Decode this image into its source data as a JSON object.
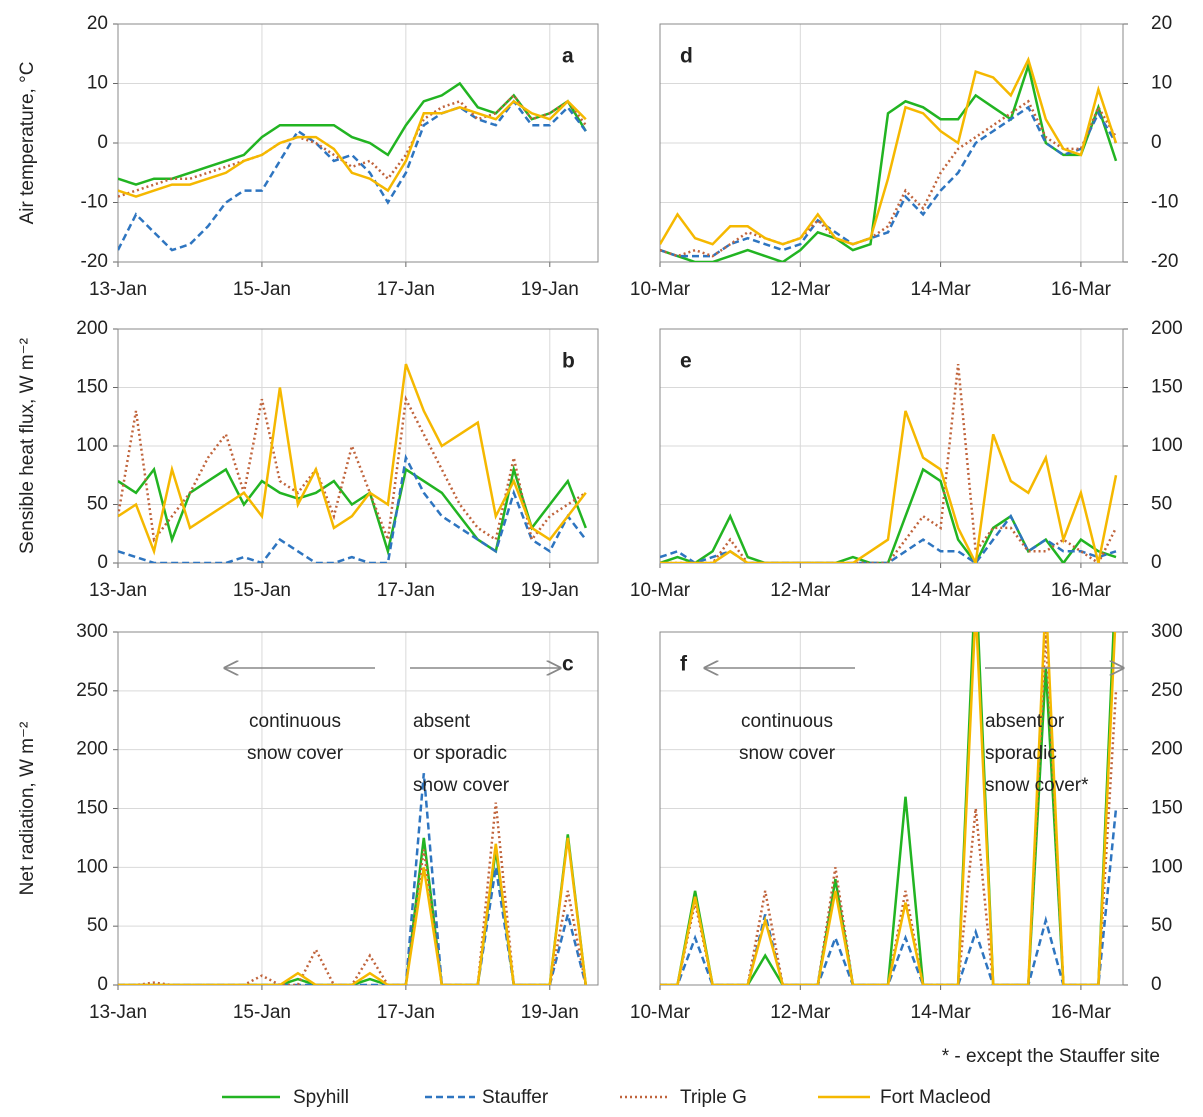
{
  "chart_data": [
    {
      "type": "line",
      "label": "a",
      "ylabel": "Air temperature, °C",
      "x": [
        0,
        0.25,
        0.5,
        0.75,
        1,
        1.25,
        1.5,
        1.75,
        2,
        2.25,
        2.5,
        2.75,
        3,
        3.25,
        3.5,
        3.75,
        4,
        4.25,
        4.5,
        4.75,
        5,
        5.25,
        5.5,
        5.75,
        6,
        6.25,
        6.5
      ],
      "xlim": [
        0,
        6.67
      ],
      "xticks": [
        {
          "value": 0,
          "label": "13-Jan"
        },
        {
          "value": 2,
          "label": "15-Jan"
        },
        {
          "value": 4,
          "label": "17-Jan"
        },
        {
          "value": 6,
          "label": "19-Jan"
        }
      ],
      "ylim": [
        -20,
        20
      ],
      "yticks": [
        -20,
        -10,
        0,
        10,
        20
      ],
      "yaxis_side": "left",
      "grid": true,
      "series": [
        {
          "name": "Spyhill",
          "color": "#22b422",
          "dash": "solid",
          "values": [
            -6,
            -7,
            -6,
            -6,
            -5,
            -4,
            -3,
            -2,
            1,
            3,
            3,
            3,
            3,
            1,
            0,
            -2,
            3,
            7,
            8,
            10,
            6,
            5,
            8,
            4,
            5,
            7,
            2
          ]
        },
        {
          "name": "Stauffer",
          "color": "#2e75c0",
          "dash": "dashed",
          "values": [
            -18,
            -12,
            -15,
            -18,
            -17,
            -14,
            -10,
            -8,
            -8,
            -3,
            2,
            0,
            -3,
            -2,
            -5,
            -10,
            -5,
            3,
            5,
            6,
            4,
            3,
            7,
            3,
            3,
            6,
            2
          ]
        },
        {
          "name": "Triple G",
          "color": "#c0643c",
          "dash": "dotted",
          "values": [
            -9,
            -8,
            -7,
            -6,
            -6,
            -5,
            -4,
            -3,
            -2,
            0,
            1,
            0,
            -2,
            -4,
            -3,
            -6,
            -2,
            4,
            6,
            7,
            4,
            5,
            8,
            4,
            5,
            7,
            3
          ]
        },
        {
          "name": "Fort Macleod",
          "color": "#f5b800",
          "dash": "solid",
          "values": [
            -8,
            -9,
            -8,
            -7,
            -7,
            -6,
            -5,
            -3,
            -2,
            0,
            1,
            1,
            -1,
            -5,
            -6,
            -8,
            -3,
            5,
            5,
            6,
            5,
            4,
            7,
            5,
            4,
            7,
            4
          ]
        }
      ]
    },
    {
      "type": "line",
      "label": "d",
      "x": [
        0,
        0.25,
        0.5,
        0.75,
        1,
        1.25,
        1.5,
        1.75,
        2,
        2.25,
        2.5,
        2.75,
        3,
        3.25,
        3.5,
        3.75,
        4,
        4.25,
        4.5,
        4.75,
        5,
        5.25,
        5.5,
        5.75,
        6,
        6.25,
        6.5
      ],
      "xlim": [
        0,
        6.6
      ],
      "xticks": [
        {
          "value": 0,
          "label": "10-Mar"
        },
        {
          "value": 2,
          "label": "12-Mar"
        },
        {
          "value": 4,
          "label": "14-Mar"
        },
        {
          "value": 6,
          "label": "16-Mar"
        }
      ],
      "ylim": [
        -20,
        20
      ],
      "yticks": [
        -20,
        -10,
        0,
        10,
        20
      ],
      "yaxis_side": "right",
      "grid": true,
      "series": [
        {
          "color": "#22b422",
          "dash": "solid",
          "values": [
            -18,
            -19,
            -20,
            -20,
            -19,
            -18,
            -19,
            -20,
            -18,
            -15,
            -16,
            -18,
            -17,
            5,
            7,
            6,
            4,
            4,
            8,
            6,
            4,
            13,
            0,
            -2,
            -2,
            6,
            -3
          ]
        },
        {
          "color": "#2e75c0",
          "dash": "dashed",
          "values": [
            -18,
            -19,
            -19,
            -19,
            -17,
            -16,
            -17,
            -18,
            -17,
            -13,
            -15,
            -17,
            -16,
            -15,
            -9,
            -12,
            -8,
            -5,
            0,
            2,
            4,
            6,
            0,
            -2,
            -1,
            5,
            0
          ]
        },
        {
          "color": "#c0643c",
          "dash": "dotted",
          "values": [
            -18,
            -19,
            -18,
            -19,
            -17,
            -15,
            -16,
            -17,
            -16,
            -13,
            -16,
            -17,
            -16,
            -14,
            -8,
            -11,
            -5,
            -1,
            1,
            3,
            5,
            7,
            1,
            -1,
            -1,
            6,
            1
          ]
        },
        {
          "color": "#f5b800",
          "dash": "solid",
          "values": [
            -17,
            -12,
            -16,
            -17,
            -14,
            -14,
            -16,
            -17,
            -16,
            -12,
            -16,
            -17,
            -16,
            -6,
            6,
            5,
            2,
            0,
            12,
            11,
            8,
            14,
            4,
            -1,
            -2,
            9,
            0
          ]
        }
      ]
    },
    {
      "type": "line",
      "label": "b",
      "ylabel": "Sensible heat flux, W m⁻²",
      "x": [
        0,
        0.25,
        0.5,
        0.75,
        1,
        1.25,
        1.5,
        1.75,
        2,
        2.25,
        2.5,
        2.75,
        3,
        3.25,
        3.5,
        3.75,
        4,
        4.25,
        4.5,
        4.75,
        5,
        5.25,
        5.5,
        5.75,
        6,
        6.25,
        6.5
      ],
      "xlim": [
        0,
        6.67
      ],
      "xticks": [
        {
          "value": 0,
          "label": "13-Jan"
        },
        {
          "value": 2,
          "label": "15-Jan"
        },
        {
          "value": 4,
          "label": "17-Jan"
        },
        {
          "value": 6,
          "label": "19-Jan"
        }
      ],
      "ylim": [
        0,
        200
      ],
      "yticks": [
        0,
        50,
        100,
        150,
        200
      ],
      "yaxis_side": "left",
      "grid": true,
      "series": [
        {
          "color": "#22b422",
          "dash": "solid",
          "values": [
            70,
            60,
            80,
            20,
            60,
            70,
            80,
            50,
            70,
            60,
            55,
            60,
            70,
            50,
            60,
            10,
            80,
            70,
            60,
            40,
            20,
            10,
            80,
            30,
            50,
            70,
            30
          ]
        },
        {
          "color": "#2e75c0",
          "dash": "dashed",
          "values": [
            10,
            5,
            0,
            0,
            0,
            0,
            0,
            5,
            0,
            20,
            10,
            0,
            0,
            5,
            0,
            0,
            90,
            60,
            40,
            30,
            20,
            10,
            60,
            20,
            10,
            40,
            20
          ]
        },
        {
          "color": "#c0643c",
          "dash": "dotted",
          "values": [
            40,
            130,
            20,
            40,
            60,
            90,
            110,
            60,
            140,
            70,
            60,
            80,
            40,
            100,
            60,
            20,
            140,
            110,
            80,
            50,
            30,
            20,
            90,
            20,
            40,
            50,
            60
          ]
        },
        {
          "color": "#f5b800",
          "dash": "solid",
          "values": [
            40,
            50,
            10,
            80,
            30,
            40,
            50,
            60,
            40,
            150,
            50,
            80,
            30,
            40,
            60,
            50,
            170,
            130,
            100,
            110,
            120,
            40,
            70,
            30,
            20,
            40,
            60
          ]
        }
      ]
    },
    {
      "type": "line",
      "label": "e",
      "x": [
        0,
        0.25,
        0.5,
        0.75,
        1,
        1.25,
        1.5,
        1.75,
        2,
        2.25,
        2.5,
        2.75,
        3,
        3.25,
        3.5,
        3.75,
        4,
        4.25,
        4.5,
        4.75,
        5,
        5.25,
        5.5,
        5.75,
        6,
        6.25,
        6.5
      ],
      "xlim": [
        0,
        6.6
      ],
      "xticks": [
        {
          "value": 0,
          "label": "10-Mar"
        },
        {
          "value": 2,
          "label": "12-Mar"
        },
        {
          "value": 4,
          "label": "14-Mar"
        },
        {
          "value": 6,
          "label": "16-Mar"
        }
      ],
      "ylim": [
        0,
        200
      ],
      "yticks": [
        0,
        50,
        100,
        150,
        200
      ],
      "yaxis_side": "right",
      "grid": true,
      "series": [
        {
          "color": "#22b422",
          "dash": "solid",
          "values": [
            0,
            5,
            0,
            10,
            40,
            5,
            0,
            0,
            0,
            0,
            0,
            5,
            0,
            0,
            40,
            80,
            70,
            20,
            0,
            30,
            40,
            10,
            20,
            0,
            20,
            10,
            5
          ]
        },
        {
          "color": "#2e75c0",
          "dash": "dashed",
          "values": [
            5,
            10,
            0,
            5,
            10,
            0,
            0,
            0,
            0,
            0,
            0,
            0,
            0,
            0,
            10,
            20,
            10,
            10,
            0,
            20,
            40,
            10,
            20,
            10,
            10,
            5,
            10
          ]
        },
        {
          "color": "#c0643c",
          "dash": "dotted",
          "values": [
            0,
            0,
            0,
            0,
            20,
            0,
            0,
            0,
            0,
            0,
            0,
            0,
            0,
            0,
            20,
            40,
            30,
            170,
            10,
            30,
            30,
            10,
            10,
            20,
            10,
            0,
            30
          ]
        },
        {
          "color": "#f5b800",
          "dash": "solid",
          "values": [
            0,
            0,
            0,
            0,
            10,
            0,
            0,
            0,
            0,
            0,
            0,
            0,
            10,
            20,
            130,
            90,
            80,
            30,
            0,
            110,
            70,
            60,
            90,
            20,
            60,
            0,
            75
          ]
        }
      ]
    },
    {
      "type": "line",
      "label": "c",
      "ylabel": "Net radiation, W m⁻²",
      "x": [
        0,
        0.25,
        0.5,
        0.75,
        1,
        1.25,
        1.5,
        1.75,
        2,
        2.25,
        2.5,
        2.75,
        3,
        3.25,
        3.5,
        3.75,
        4,
        4.25,
        4.5,
        4.75,
        5,
        5.25,
        5.5,
        5.75,
        6,
        6.25,
        6.5
      ],
      "xlim": [
        0,
        6.67
      ],
      "xticks": [
        {
          "value": 0,
          "label": "13-Jan"
        },
        {
          "value": 2,
          "label": "15-Jan"
        },
        {
          "value": 4,
          "label": "17-Jan"
        },
        {
          "value": 6,
          "label": "19-Jan"
        }
      ],
      "ylim": [
        0,
        300
      ],
      "yticks": [
        0,
        50,
        100,
        150,
        200,
        250,
        300
      ],
      "yaxis_side": "left",
      "grid": true,
      "annotations": [
        [
          "continuous",
          "snow cover"
        ],
        [
          "absent",
          "or sporadic",
          "snow cover"
        ]
      ],
      "series": [
        {
          "color": "#22b422",
          "dash": "solid",
          "values": [
            0,
            0,
            0,
            0,
            0,
            0,
            0,
            0,
            0,
            0,
            5,
            0,
            0,
            0,
            5,
            0,
            0,
            125,
            0,
            0,
            0,
            115,
            0,
            0,
            0,
            128,
            0
          ]
        },
        {
          "color": "#2e75c0",
          "dash": "dashed",
          "values": [
            0,
            0,
            0,
            0,
            0,
            0,
            0,
            0,
            0,
            0,
            0,
            0,
            0,
            0,
            0,
            0,
            0,
            180,
            0,
            0,
            0,
            100,
            0,
            0,
            0,
            60,
            0
          ]
        },
        {
          "color": "#c0643c",
          "dash": "dotted",
          "values": [
            0,
            0,
            2,
            0,
            0,
            0,
            0,
            0,
            8,
            0,
            0,
            30,
            0,
            0,
            25,
            0,
            0,
            115,
            0,
            0,
            0,
            155,
            0,
            0,
            0,
            80,
            0
          ]
        },
        {
          "color": "#f5b800",
          "dash": "solid",
          "values": [
            0,
            0,
            0,
            0,
            0,
            0,
            0,
            0,
            0,
            0,
            10,
            0,
            0,
            0,
            10,
            0,
            0,
            100,
            0,
            0,
            0,
            120,
            0,
            0,
            0,
            125,
            0
          ]
        }
      ]
    },
    {
      "type": "line",
      "label": "f",
      "x": [
        0,
        0.25,
        0.5,
        0.75,
        1,
        1.25,
        1.5,
        1.75,
        2,
        2.25,
        2.5,
        2.75,
        3,
        3.25,
        3.5,
        3.75,
        4,
        4.25,
        4.5,
        4.75,
        5,
        5.25,
        5.5,
        5.75,
        6,
        6.25,
        6.5
      ],
      "xlim": [
        0,
        6.6
      ],
      "xticks": [
        {
          "value": 0,
          "label": "10-Mar"
        },
        {
          "value": 2,
          "label": "12-Mar"
        },
        {
          "value": 4,
          "label": "14-Mar"
        },
        {
          "value": 6,
          "label": "16-Mar"
        }
      ],
      "ylim": [
        0,
        300
      ],
      "yticks": [
        0,
        50,
        100,
        150,
        200,
        250,
        300
      ],
      "yaxis_side": "right",
      "grid": true,
      "annotations": [
        [
          "continuous",
          "snow cover"
        ],
        [
          "absent or",
          "sporadic",
          "snow cover*"
        ]
      ],
      "series": [
        {
          "color": "#22b422",
          "dash": "solid",
          "values": [
            0,
            0,
            80,
            0,
            0,
            0,
            25,
            0,
            0,
            0,
            90,
            0,
            0,
            0,
            160,
            0,
            0,
            0,
            350,
            0,
            0,
            0,
            270,
            0,
            0,
            0,
            350
          ]
        },
        {
          "color": "#2e75c0",
          "dash": "dashed",
          "values": [
            0,
            0,
            40,
            0,
            0,
            0,
            60,
            0,
            0,
            0,
            40,
            0,
            0,
            0,
            40,
            0,
            0,
            0,
            45,
            0,
            0,
            0,
            55,
            0,
            0,
            0,
            150
          ]
        },
        {
          "color": "#c0643c",
          "dash": "dotted",
          "values": [
            0,
            0,
            70,
            0,
            0,
            0,
            80,
            0,
            0,
            0,
            100,
            0,
            0,
            0,
            80,
            0,
            0,
            0,
            150,
            0,
            0,
            0,
            300,
            0,
            0,
            0,
            250
          ]
        },
        {
          "color": "#f5b800",
          "dash": "solid",
          "values": [
            0,
            0,
            75,
            0,
            0,
            0,
            55,
            0,
            0,
            0,
            80,
            0,
            0,
            0,
            70,
            0,
            0,
            0,
            320,
            0,
            0,
            0,
            330,
            0,
            0,
            0,
            320
          ]
        }
      ]
    }
  ],
  "note": "* - except the Stauffer site"
}
